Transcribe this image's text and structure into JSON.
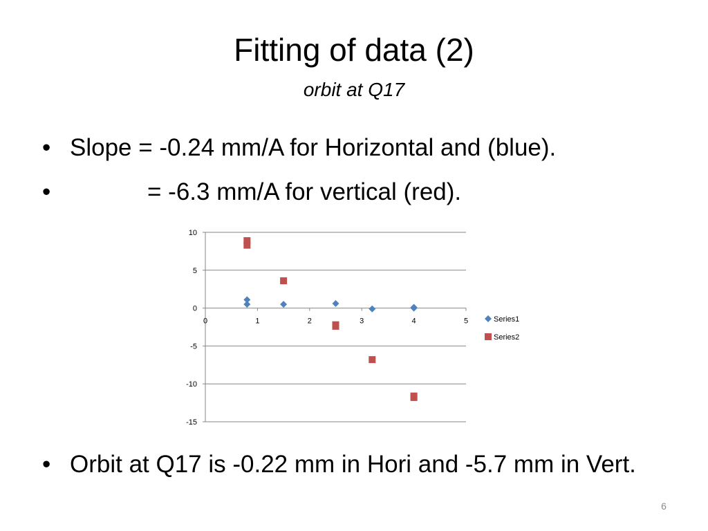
{
  "slide": {
    "title": "Fitting of data (2)",
    "subtitle": "orbit at Q17",
    "bullet_symbol": "•",
    "bullets": [
      "Slope = -0.24 mm/A for Horizontal and (blue).",
      "= -6.3 mm/A for vertical (red).",
      "Orbit at Q17 is -0.22 mm in Hori and -5.7 mm in Vert."
    ],
    "page_number": "6"
  },
  "colors": {
    "series1": "#4f81bd",
    "series2": "#c0504d",
    "gridline": "#868686",
    "axis": "#868686"
  },
  "chart_data": {
    "type": "scatter",
    "title": "",
    "xlabel": "",
    "ylabel": "",
    "xlim": [
      0,
      5
    ],
    "ylim": [
      -15,
      10
    ],
    "x_ticks": [
      0,
      1,
      2,
      3,
      4,
      5
    ],
    "y_ticks": [
      10,
      5,
      0,
      -5,
      -10,
      -15
    ],
    "grid": "horizontal",
    "legend": "right",
    "series": [
      {
        "name": "Series1",
        "marker": "diamond",
        "points": [
          [
            0.8,
            1.1
          ],
          [
            0.8,
            0.5
          ],
          [
            1.5,
            0.5
          ],
          [
            2.5,
            0.6
          ],
          [
            3.2,
            -0.1
          ],
          [
            4.0,
            0.1
          ],
          [
            4.0,
            0.0
          ]
        ]
      },
      {
        "name": "Series2",
        "marker": "square",
        "points": [
          [
            0.8,
            8.9
          ],
          [
            0.8,
            8.3
          ],
          [
            1.5,
            3.6
          ],
          [
            2.5,
            -2.2
          ],
          [
            2.5,
            -2.4
          ],
          [
            3.2,
            -6.8
          ],
          [
            4.0,
            -11.6
          ],
          [
            4.0,
            -11.8
          ]
        ]
      }
    ]
  }
}
